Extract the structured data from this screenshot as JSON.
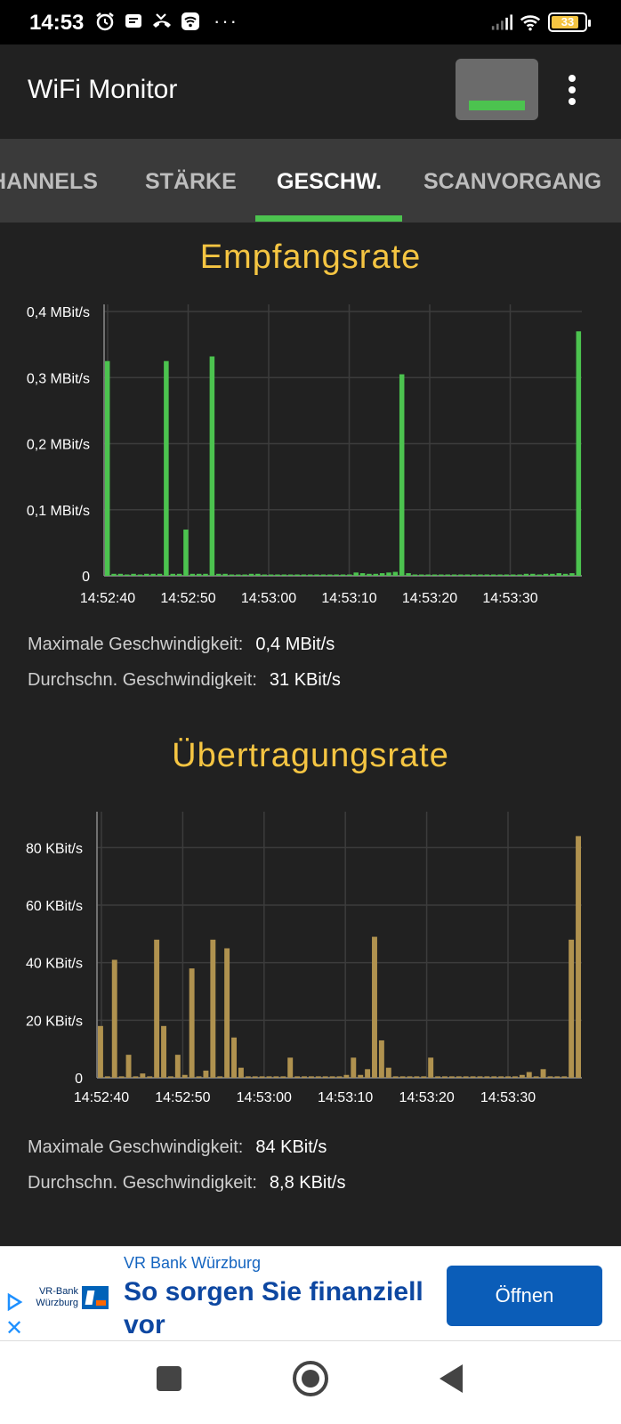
{
  "status_bar": {
    "time": "14:53",
    "battery": "33"
  },
  "app_bar": {
    "title": "WiFi Monitor"
  },
  "tabs": [
    {
      "label": "CHANNELS"
    },
    {
      "label": "STÄRKE"
    },
    {
      "label": "GESCHW."
    },
    {
      "label": "SCANVORGANG"
    }
  ],
  "receive": {
    "title": "Empfangsrate",
    "max_label": "Maximale Geschwindigkeit:",
    "max_value": "0,4 MBit/s",
    "avg_label": "Durchschn. Geschwindigkeit:",
    "avg_value": "31 KBit/s"
  },
  "transmit": {
    "title": "Übertragungsrate",
    "max_label": "Maximale Geschwindigkeit:",
    "max_value": "84 KBit/s",
    "avg_label": "Durchschn. Geschwindigkeit:",
    "avg_value": "8,8 KBit/s"
  },
  "ad": {
    "sponsor": "VR Bank Würzburg",
    "logo_text": "VR-Bank Würzburg",
    "headline": "So sorgen Sie finanziell vor",
    "button": "Öffnen"
  },
  "colors": {
    "accent_green": "#4cc34f",
    "chart_gold": "#b0924f",
    "title_yellow": "#f5c542",
    "background": "#212121"
  },
  "chart_data": [
    {
      "type": "bar",
      "title": "Empfangsrate",
      "unit": "MBit/s",
      "x_labels": [
        "14:52:40",
        "14:52:50",
        "14:53:00",
        "14:53:10",
        "14:53:20",
        "14:53:30"
      ],
      "y_ticks": [
        "0",
        "0,1 MBit/s",
        "0,2 MBit/s",
        "0,3 MBit/s",
        "0,4 MBit/s"
      ],
      "ylim": [
        0,
        0.4
      ],
      "values": [
        0.325,
        0.003,
        0.003,
        0.002,
        0.003,
        0.002,
        0.003,
        0.003,
        0.003,
        0.325,
        0.003,
        0.003,
        0.07,
        0.003,
        0.003,
        0.003,
        0.332,
        0.003,
        0.003,
        0.002,
        0.002,
        0.002,
        0.003,
        0.003,
        0.002,
        0.002,
        0.002,
        0.002,
        0.002,
        0.002,
        0.002,
        0.002,
        0.002,
        0.002,
        0.002,
        0.002,
        0.002,
        0.002,
        0.005,
        0.004,
        0.003,
        0.003,
        0.004,
        0.005,
        0.006,
        0.305,
        0.004,
        0.002,
        0.002,
        0.002,
        0.002,
        0.002,
        0.002,
        0.002,
        0.002,
        0.002,
        0.002,
        0.002,
        0.002,
        0.002,
        0.002,
        0.002,
        0.002,
        0.002,
        0.003,
        0.003,
        0.002,
        0.003,
        0.003,
        0.004,
        0.003,
        0.004,
        0.37
      ],
      "grid": true
    },
    {
      "type": "bar",
      "title": "Übertragungsrate",
      "unit": "KBit/s",
      "x_labels": [
        "14:52:40",
        "14:52:50",
        "14:53:00",
        "14:53:10",
        "14:53:20",
        "14:53:30"
      ],
      "y_ticks": [
        "0",
        "20 KBit/s",
        "40 KBit/s",
        "60 KBit/s",
        "80 KBit/s"
      ],
      "ylim": [
        0,
        90
      ],
      "values": [
        18,
        0.5,
        41,
        0.5,
        8,
        0.5,
        1.5,
        0.5,
        48,
        18,
        0.5,
        8,
        1,
        38,
        0.5,
        2.5,
        48,
        0.5,
        45,
        14,
        3.5,
        0.5,
        0.5,
        0.5,
        0.5,
        0.5,
        0.5,
        7,
        0.5,
        0.5,
        0.5,
        0.5,
        0.5,
        0.5,
        0.5,
        1,
        7,
        1,
        3,
        49,
        13,
        3.5,
        0.5,
        0.5,
        0.5,
        0.5,
        0.5,
        7,
        0.5,
        0.5,
        0.5,
        0.5,
        0.5,
        0.5,
        0.5,
        0.5,
        0.5,
        0.5,
        0.5,
        0.5,
        1,
        2,
        0.5,
        3,
        0.5,
        0.5,
        0.5,
        48,
        84
      ],
      "grid": true
    }
  ]
}
